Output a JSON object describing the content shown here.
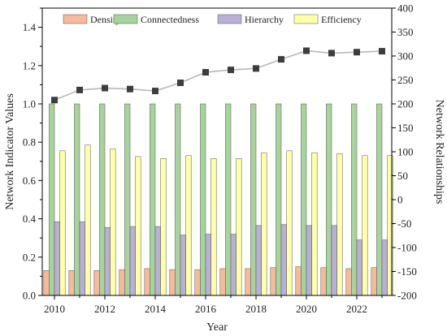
{
  "chart_data": {
    "type": "bar",
    "x": [
      2010,
      2011,
      2012,
      2013,
      2014,
      2015,
      2016,
      2017,
      2018,
      2019,
      2020,
      2021,
      2022,
      2023
    ],
    "series": [
      {
        "name": "Density",
        "type": "bar",
        "axis": "left",
        "color": "#f6b99a",
        "values": [
          0.13,
          0.13,
          0.13,
          0.135,
          0.14,
          0.135,
          0.135,
          0.14,
          0.14,
          0.145,
          0.15,
          0.145,
          0.14,
          0.145
        ]
      },
      {
        "name": "Connectedness",
        "type": "bar",
        "axis": "left",
        "color": "#a6d49a",
        "values": [
          1.0,
          1.0,
          1.0,
          1.0,
          1.0,
          1.0,
          1.0,
          1.0,
          1.0,
          1.0,
          1.0,
          1.0,
          1.0,
          1.0
        ]
      },
      {
        "name": "Hierarchy",
        "type": "bar",
        "axis": "left",
        "color": "#b9afd7",
        "values": [
          0.385,
          0.385,
          0.355,
          0.36,
          0.36,
          0.315,
          0.32,
          0.32,
          0.365,
          0.37,
          0.365,
          0.365,
          0.29,
          0.29
        ]
      },
      {
        "name": "Efficiency",
        "type": "bar",
        "axis": "left",
        "color": "#ffffa5",
        "values": [
          0.755,
          0.785,
          0.765,
          0.725,
          0.715,
          0.73,
          0.715,
          0.715,
          0.745,
          0.755,
          0.745,
          0.74,
          0.73,
          0.73
        ]
      },
      {
        "name": "",
        "type": "line",
        "axis": "right",
        "color": "#3d3d3d",
        "line_color": "#b8b8b8",
        "values": [
          208,
          229,
          233,
          231,
          227,
          244,
          266,
          271,
          274,
          293,
          311,
          306,
          308,
          310
        ]
      }
    ],
    "x_ticks": [
      "2010",
      "2012",
      "2014",
      "2016",
      "2018",
      "2020",
      "2022"
    ],
    "xlabel": "Year",
    "ylabel": "Network Indicator Values",
    "y2label": "Network Relationships",
    "ylim": [
      0,
      1.5
    ],
    "y_ticks": [
      "0.0",
      "0.2",
      "0.4",
      "0.6",
      "0.8",
      "1.0",
      "1.2",
      "1.4"
    ],
    "y2lim": [
      -200,
      400
    ],
    "y2_ticks": [
      "-200",
      "-150",
      "-100",
      "-50",
      "0",
      "50",
      "100",
      "150",
      "200",
      "250",
      "300",
      "350",
      "400"
    ],
    "legend": [
      "Density",
      "Connectedness",
      "Hierarchy",
      "Efficiency"
    ],
    "legend_position": "top",
    "grid": false
  }
}
